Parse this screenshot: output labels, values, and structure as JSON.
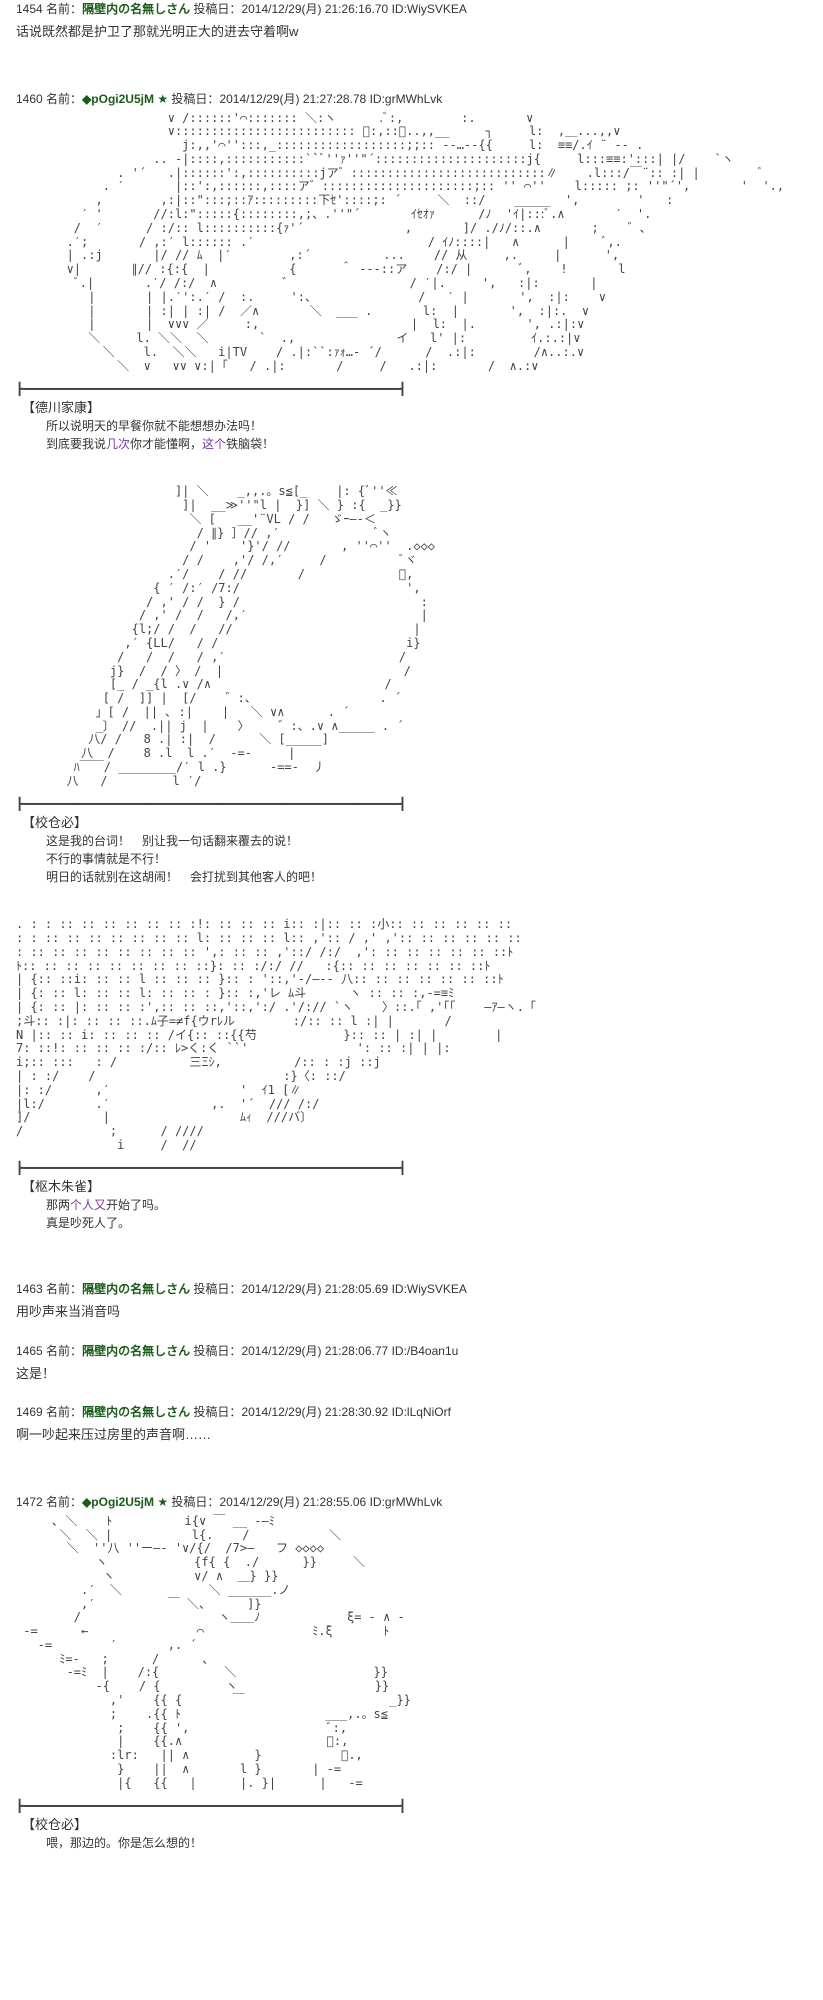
{
  "posts": [
    {
      "num": "1454",
      "name": "隔壁内の名無しさん",
      "trip": "",
      "date": "2014/12/29(月) 21:26:16.70",
      "id": "WiySVKEA",
      "body": "话说既然都是护卫了那就光明正大的进去守着啊w"
    },
    {
      "num": "1460",
      "name": "◆pOgi2U5jM",
      "trip": "★",
      "date": "2014/12/29(月) 21:27:28.78",
      "id": "grMWhLvk",
      "body": ""
    },
    {
      "num": "1463",
      "name": "隔壁内の名無しさん",
      "trip": "",
      "date": "2014/12/29(月) 21:28:05.69",
      "id": "WiySVKEA",
      "body": "用吵声来当消音吗"
    },
    {
      "num": "1465",
      "name": "隔壁内の名無しさん",
      "trip": "",
      "date": "2014/12/29(月) 21:28:06.77",
      "id": "/B4oan1u",
      "body": "这是！"
    },
    {
      "num": "1469",
      "name": "隔壁内の名無しさん",
      "trip": "",
      "date": "2014/12/29(月) 21:28:30.92",
      "id": "lLqNiOrf",
      "body": "啊一吵起来压过房里的声音啊……"
    },
    {
      "num": "1472",
      "name": "◆pOgi2U5jM",
      "trip": "★",
      "date": "2014/12/29(月) 21:28:55.06",
      "id": "grMWhLvk",
      "body": ""
    }
  ],
  "dlg1": {
    "header": "【德川家康】",
    "l1": "　所以说明天的早餐你就不能想想办法吗！",
    "l2a": "　到底要我说",
    "l2b": "几次",
    "l2c": "你才能懂啊，",
    "l2d": "这个",
    "l2e": "铁脑袋！"
  },
  "dlg2": {
    "header": "【校仓必】",
    "l1": "　这是我的台词！　别让我一句话翻来覆去的说！",
    "l2": "　不行的事情就是不行！",
    "l3": "　明日的话就别在这胡闹！　会打扰到其他客人的吧！"
  },
  "dlg3": {
    "header": "【枢木朱雀】",
    "l1a": "　那两",
    "l1b": "个人又",
    "l1c": "开始了吗。",
    "l2": "　真是吵死人了。"
  },
  "dlg4": {
    "header": "【校仓必】",
    "l1": "　喂，那边的。你是怎么想的！"
  },
  "labels": {
    "name_prefix": "名前：",
    "date_prefix": "投稿日：",
    "id_prefix": "ID:"
  },
  "divider": "┣━━━━━━━━━━━━━━━━━━━━━━━━━━━━━━━━━━━━━━━━━━━━━━━━━━━━┫"
}
